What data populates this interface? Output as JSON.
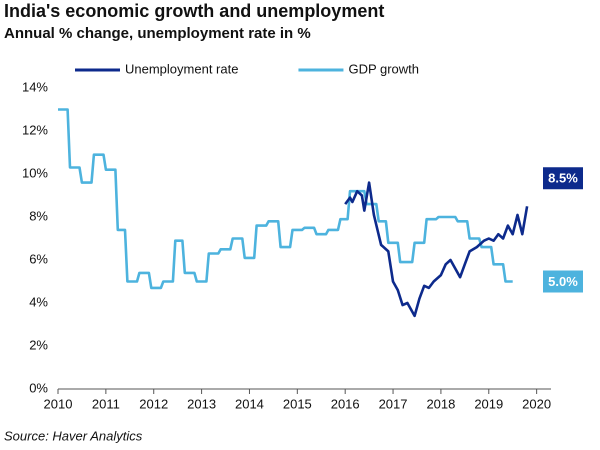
{
  "chart_data": {
    "type": "line",
    "title": "India's economic growth and unemployment",
    "subtitle": "Annual % change, unemployment rate in %",
    "source": "Source: Haver Analytics",
    "xlim": [
      2010,
      2020.3
    ],
    "xticks": [
      2010,
      2011,
      2012,
      2013,
      2014,
      2015,
      2016,
      2017,
      2018,
      2019,
      2020
    ],
    "ylim": [
      0,
      14
    ],
    "yticks": [
      {
        "value": 0,
        "label": "0%"
      },
      {
        "value": 2,
        "label": "2%"
      },
      {
        "value": 4,
        "label": "4%"
      },
      {
        "value": 6,
        "label": "6%"
      },
      {
        "value": 8,
        "label": "8%"
      },
      {
        "value": 10,
        "label": "10%"
      },
      {
        "value": 12,
        "label": "12%"
      },
      {
        "value": 14,
        "label": "14%"
      }
    ],
    "grid": false,
    "legend": "top",
    "series": [
      {
        "name": "Unemployment rate",
        "color": "#0d2a8c",
        "end_label": "8.5%",
        "x": [
          2016.0,
          2016.1,
          2016.15,
          2016.25,
          2016.35,
          2016.4,
          2016.5,
          2016.6,
          2016.75,
          2016.9,
          2017.0,
          2017.1,
          2017.2,
          2017.3,
          2017.45,
          2017.55,
          2017.65,
          2017.75,
          2017.85,
          2018.0,
          2018.1,
          2018.2,
          2018.3,
          2018.4,
          2018.5,
          2018.6,
          2018.75,
          2018.9,
          2019.0,
          2019.1,
          2019.2,
          2019.3,
          2019.4,
          2019.5,
          2019.6,
          2019.7,
          2019.8
        ],
        "values": [
          8.6,
          8.9,
          8.7,
          9.2,
          9.0,
          8.3,
          9.6,
          8.1,
          6.7,
          6.4,
          5.0,
          4.6,
          3.9,
          4.0,
          3.4,
          4.2,
          4.8,
          4.7,
          5.0,
          5.3,
          5.8,
          6.0,
          5.6,
          5.2,
          5.8,
          6.4,
          6.6,
          6.9,
          7.0,
          6.9,
          7.2,
          7.0,
          7.6,
          7.2,
          8.1,
          7.2,
          8.5
        ]
      },
      {
        "name": "GDP growth",
        "color": "#4db3de",
        "end_label": "5.0%",
        "x": [
          2010.0,
          2010.2,
          2010.25,
          2010.45,
          2010.5,
          2010.7,
          2010.75,
          2010.95,
          2011.0,
          2011.2,
          2011.25,
          2011.4,
          2011.45,
          2011.65,
          2011.7,
          2011.9,
          2011.95,
          2012.15,
          2012.2,
          2012.4,
          2012.45,
          2012.6,
          2012.65,
          2012.85,
          2012.9,
          2013.1,
          2013.15,
          2013.35,
          2013.4,
          2013.6,
          2013.65,
          2013.85,
          2013.9,
          2014.1,
          2014.15,
          2014.35,
          2014.4,
          2014.6,
          2014.65,
          2014.85,
          2014.9,
          2015.1,
          2015.15,
          2015.35,
          2015.4,
          2015.6,
          2015.65,
          2015.85,
          2015.9,
          2016.05,
          2016.1,
          2016.4,
          2016.45,
          2016.65,
          2016.7,
          2016.85,
          2016.9,
          2017.1,
          2017.15,
          2017.4,
          2017.45,
          2017.65,
          2017.7,
          2017.9,
          2017.95,
          2018.3,
          2018.35,
          2018.55,
          2018.6,
          2018.8,
          2018.85,
          2019.05,
          2019.1,
          2019.3,
          2019.35,
          2019.5
        ],
        "values": [
          13,
          13,
          10.3,
          10.3,
          9.6,
          9.6,
          10.9,
          10.9,
          10.2,
          10.2,
          7.4,
          7.4,
          5.0,
          5.0,
          5.4,
          5.4,
          4.7,
          4.7,
          5.0,
          5.0,
          6.9,
          6.9,
          5.4,
          5.4,
          5.0,
          5.0,
          6.3,
          6.3,
          6.5,
          6.5,
          7.0,
          7.0,
          6.1,
          6.1,
          7.6,
          7.6,
          7.8,
          7.8,
          6.6,
          6.6,
          7.4,
          7.4,
          7.5,
          7.5,
          7.2,
          7.2,
          7.4,
          7.4,
          7.9,
          7.9,
          9.2,
          9.2,
          8.6,
          8.6,
          7.8,
          7.8,
          6.8,
          6.8,
          5.9,
          5.9,
          6.8,
          6.8,
          7.9,
          7.9,
          8.0,
          8.0,
          7.8,
          7.8,
          7.0,
          7.0,
          6.6,
          6.6,
          5.8,
          5.8,
          5.0,
          5.0
        ]
      }
    ]
  }
}
